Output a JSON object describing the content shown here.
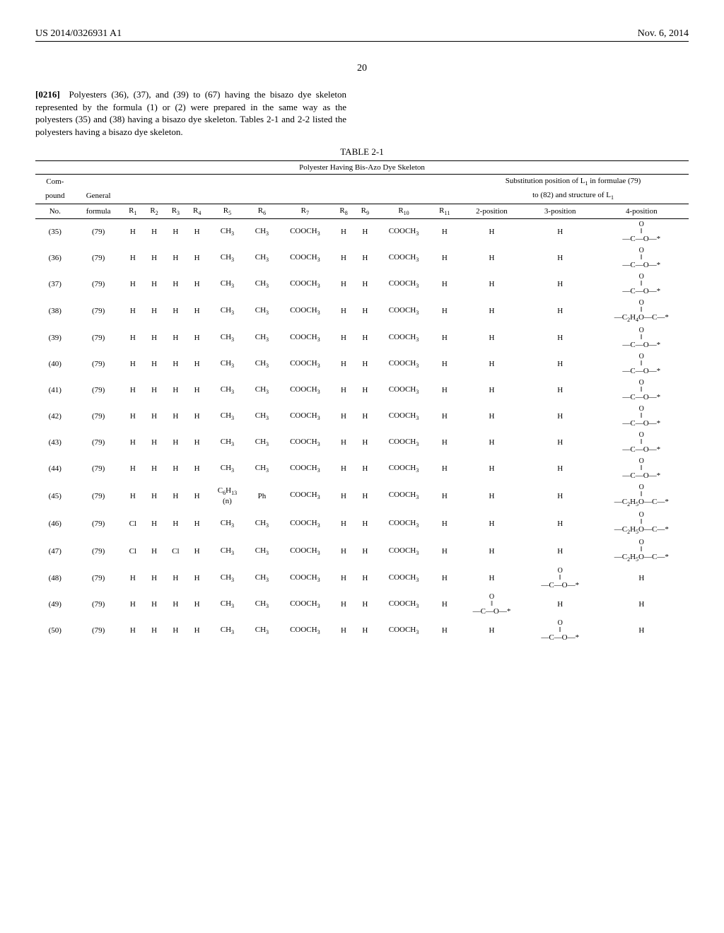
{
  "header": {
    "left": "US 2014/0326931 A1",
    "right": "Nov. 6, 2014"
  },
  "page_number": "20",
  "paragraph": {
    "label": "[0216]",
    "text": "Polyesters (36), (37), and (39) to (67) having the bisazo dye skeleton represented by the formula (1) or (2) were prepared in the same way as the polyesters (35) and (38) having a bisazo dye skeleton. Tables 2-1 and 2-2 listed the polyesters having a bisazo dye skeleton."
  },
  "table": {
    "caption": "TABLE 2-1",
    "title": "Polyester Having Bis-Azo Dye Skeleton",
    "col_group_right_top": "Substitution position of L₁ in formulae (79)",
    "col_group_right_bot": "to (82) and structure of L₁",
    "col_left_1": "Com-",
    "col_left_2": "pound",
    "col_left_3": "General",
    "headers": {
      "c0": "No.",
      "c1": "formula",
      "c2": "R₁",
      "c3": "R₂",
      "c4": "R₃",
      "c5": "R₄",
      "c6": "R₅",
      "c7": "R₆",
      "c8": "R₇",
      "c9": "R₈",
      "c10": "R₉",
      "c11": "R₁₀",
      "c12": "R₁₁",
      "c13": "2-position",
      "c14": "3-position",
      "c15": "4-position"
    },
    "frag_coo": {
      "top": "O",
      "bot": "—C—O—*",
      "mid": "‖"
    },
    "frag_c2h4o": {
      "top": "O",
      "bot": "—C₂H₄O—C—*",
      "mid": "‖"
    },
    "frag_c2h5o": {
      "top": "O",
      "bot": "—C₂H₅O—C—*",
      "mid": "‖"
    },
    "rows": [
      {
        "no": "(35)",
        "gf": "(79)",
        "r1": "H",
        "r2": "H",
        "r3": "H",
        "r4": "H",
        "r5": "CH₃",
        "r6": "CH₃",
        "r7": "COOCH₃",
        "r8": "H",
        "r9": "H",
        "r10": "COOCH₃",
        "r11": "H",
        "p2": "H",
        "p3": "H",
        "p4": "coo"
      },
      {
        "no": "(36)",
        "gf": "(79)",
        "r1": "H",
        "r2": "H",
        "r3": "H",
        "r4": "H",
        "r5": "CH₃",
        "r6": "CH₃",
        "r7": "COOCH₃",
        "r8": "H",
        "r9": "H",
        "r10": "COOCH₃",
        "r11": "H",
        "p2": "H",
        "p3": "H",
        "p4": "coo"
      },
      {
        "no": "(37)",
        "gf": "(79)",
        "r1": "H",
        "r2": "H",
        "r3": "H",
        "r4": "H",
        "r5": "CH₃",
        "r6": "CH₃",
        "r7": "COOCH₃",
        "r8": "H",
        "r9": "H",
        "r10": "COOCH₃",
        "r11": "H",
        "p2": "H",
        "p3": "H",
        "p4": "coo"
      },
      {
        "no": "(38)",
        "gf": "(79)",
        "r1": "H",
        "r2": "H",
        "r3": "H",
        "r4": "H",
        "r5": "CH₃",
        "r6": "CH₃",
        "r7": "COOCH₃",
        "r8": "H",
        "r9": "H",
        "r10": "COOCH₃",
        "r11": "H",
        "p2": "H",
        "p3": "H",
        "p4": "c2h4o"
      },
      {
        "no": "(39)",
        "gf": "(79)",
        "r1": "H",
        "r2": "H",
        "r3": "H",
        "r4": "H",
        "r5": "CH₃",
        "r6": "CH₃",
        "r7": "COOCH₃",
        "r8": "H",
        "r9": "H",
        "r10": "COOCH₃",
        "r11": "H",
        "p2": "H",
        "p3": "H",
        "p4": "coo"
      },
      {
        "no": "(40)",
        "gf": "(79)",
        "r1": "H",
        "r2": "H",
        "r3": "H",
        "r4": "H",
        "r5": "CH₃",
        "r6": "CH₃",
        "r7": "COOCH₃",
        "r8": "H",
        "r9": "H",
        "r10": "COOCH₃",
        "r11": "H",
        "p2": "H",
        "p3": "H",
        "p4": "coo"
      },
      {
        "no": "(41)",
        "gf": "(79)",
        "r1": "H",
        "r2": "H",
        "r3": "H",
        "r4": "H",
        "r5": "CH₃",
        "r6": "CH₃",
        "r7": "COOCH₃",
        "r8": "H",
        "r9": "H",
        "r10": "COOCH₃",
        "r11": "H",
        "p2": "H",
        "p3": "H",
        "p4": "coo"
      },
      {
        "no": "(42)",
        "gf": "(79)",
        "r1": "H",
        "r2": "H",
        "r3": "H",
        "r4": "H",
        "r5": "CH₃",
        "r6": "CH₃",
        "r7": "COOCH₃",
        "r8": "H",
        "r9": "H",
        "r10": "COOCH₃",
        "r11": "H",
        "p2": "H",
        "p3": "H",
        "p4": "coo"
      },
      {
        "no": "(43)",
        "gf": "(79)",
        "r1": "H",
        "r2": "H",
        "r3": "H",
        "r4": "H",
        "r5": "CH₃",
        "r6": "CH₃",
        "r7": "COOCH₃",
        "r8": "H",
        "r9": "H",
        "r10": "COOCH₃",
        "r11": "H",
        "p2": "H",
        "p3": "H",
        "p4": "coo"
      },
      {
        "no": "(44)",
        "gf": "(79)",
        "r1": "H",
        "r2": "H",
        "r3": "H",
        "r4": "H",
        "r5": "CH₃",
        "r6": "CH₃",
        "r7": "COOCH₃",
        "r8": "H",
        "r9": "H",
        "r10": "COOCH₃",
        "r11": "H",
        "p2": "H",
        "p3": "H",
        "p4": "coo"
      },
      {
        "no": "(45)",
        "gf": "(79)",
        "r1": "H",
        "r2": "H",
        "r3": "H",
        "r4": "H",
        "r5": "C₆H₁₃\n(n)",
        "r6": "Ph",
        "r7": "COOCH₃",
        "r8": "H",
        "r9": "H",
        "r10": "COOCH₃",
        "r11": "H",
        "p2": "H",
        "p3": "H",
        "p4": "c2h5o"
      },
      {
        "no": "(46)",
        "gf": "(79)",
        "r1": "Cl",
        "r2": "H",
        "r3": "H",
        "r4": "H",
        "r5": "CH₃",
        "r6": "CH₃",
        "r7": "COOCH₃",
        "r8": "H",
        "r9": "H",
        "r10": "COOCH₃",
        "r11": "H",
        "p2": "H",
        "p3": "H",
        "p4": "c2h5o"
      },
      {
        "no": "(47)",
        "gf": "(79)",
        "r1": "Cl",
        "r2": "H",
        "r3": "Cl",
        "r4": "H",
        "r5": "CH₃",
        "r6": "CH₃",
        "r7": "COOCH₃",
        "r8": "H",
        "r9": "H",
        "r10": "COOCH₃",
        "r11": "H",
        "p2": "H",
        "p3": "H",
        "p4": "c2h5o"
      },
      {
        "no": "(48)",
        "gf": "(79)",
        "r1": "H",
        "r2": "H",
        "r3": "H",
        "r4": "H",
        "r5": "CH₃",
        "r6": "CH₃",
        "r7": "COOCH₃",
        "r8": "H",
        "r9": "H",
        "r10": "COOCH₃",
        "r11": "H",
        "p2": "H",
        "p3": "coo",
        "p4": "H"
      },
      {
        "no": "(49)",
        "gf": "(79)",
        "r1": "H",
        "r2": "H",
        "r3": "H",
        "r4": "H",
        "r5": "CH₃",
        "r6": "CH₃",
        "r7": "COOCH₃",
        "r8": "H",
        "r9": "H",
        "r10": "COOCH₃",
        "r11": "H",
        "p2": "coo",
        "p3": "H",
        "p4": "H"
      },
      {
        "no": "(50)",
        "gf": "(79)",
        "r1": "H",
        "r2": "H",
        "r3": "H",
        "r4": "H",
        "r5": "CH₃",
        "r6": "CH₃",
        "r7": "COOCH₃",
        "r8": "H",
        "r9": "H",
        "r10": "COOCH₃",
        "r11": "H",
        "p2": "H",
        "p3": "coo",
        "p4": "H"
      }
    ]
  }
}
